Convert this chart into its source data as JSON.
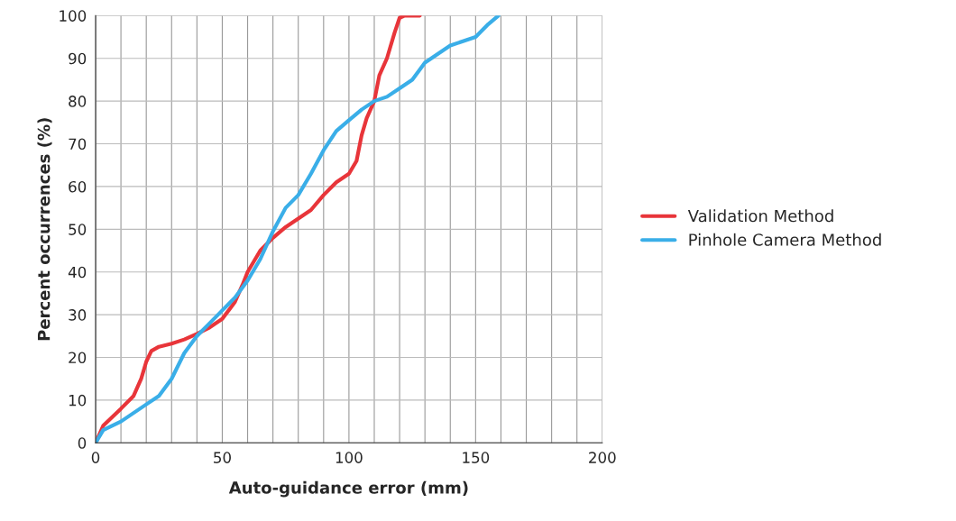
{
  "chart_data": {
    "type": "line",
    "xlabel": "Auto-guidance error (mm)",
    "ylabel": "Percent occurrences (%)",
    "xlim": [
      0,
      200
    ],
    "xticks": [
      0,
      50,
      100,
      150,
      200
    ],
    "ylim": [
      0,
      100
    ],
    "yticks": [
      0,
      10,
      20,
      30,
      40,
      50,
      60,
      70,
      80,
      90,
      100
    ],
    "grid": true,
    "legend": "right",
    "marker": "none",
    "line_style": "solid",
    "series": [
      {
        "name": "Validation Method",
        "color": "#e8353a",
        "x": [
          0,
          3,
          10,
          15,
          18,
          20,
          22,
          25,
          30,
          35,
          40,
          45,
          50,
          55,
          58,
          60,
          65,
          70,
          75,
          80,
          85,
          90,
          95,
          100,
          103,
          105,
          107,
          110,
          112,
          115,
          118,
          120,
          122,
          128
        ],
        "values": [
          0,
          4,
          8,
          11,
          15,
          19,
          21.5,
          22.5,
          23.2,
          24.2,
          25.5,
          27,
          29,
          33,
          37,
          40,
          45,
          48,
          50.5,
          52.5,
          54.5,
          58,
          61,
          63,
          66,
          72,
          76,
          80,
          86,
          90,
          96,
          99.5,
          100,
          100
        ]
      },
      {
        "name": "Pinhole Camera Method",
        "color": "#3aaee8",
        "x": [
          0,
          3,
          10,
          15,
          20,
          25,
          30,
          35,
          40,
          45,
          50,
          55,
          60,
          65,
          70,
          75,
          80,
          85,
          90,
          95,
          100,
          105,
          110,
          115,
          120,
          125,
          130,
          135,
          140,
          145,
          150,
          155,
          159
        ],
        "values": [
          0,
          3,
          5,
          7,
          9,
          11,
          15,
          21,
          25,
          28,
          31,
          34,
          38,
          43,
          49.5,
          55,
          58,
          63,
          68.5,
          73,
          75.5,
          78,
          80,
          81,
          83,
          85,
          89,
          91,
          93,
          94,
          95,
          98,
          100
        ]
      }
    ]
  }
}
